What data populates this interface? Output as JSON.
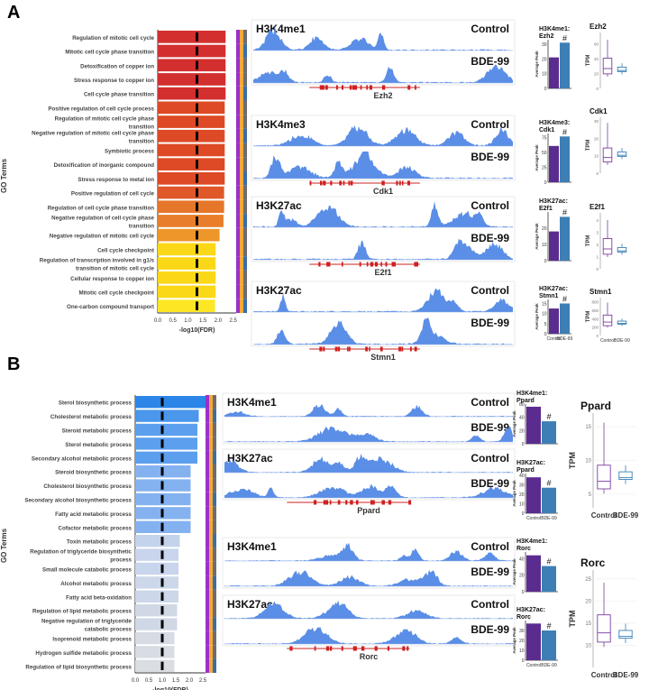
{
  "panelA": {
    "letter": "A",
    "go_axis_title": "GO Terms",
    "xlabel": "-log10(FDR)",
    "xticks": [
      "0.0",
      "0.5",
      "1.0",
      "1.5",
      "2.0",
      "2.5"
    ],
    "terms": [
      {
        "label": "Regulation of mitotic cell cycle",
        "value": 2.25,
        "color": "#d32f2f"
      },
      {
        "label": "Mitotic cell cycle phase transition",
        "value": 2.25,
        "color": "#d32f2f"
      },
      {
        "label": "Detoxification of copper ion",
        "value": 2.25,
        "color": "#d32f2f"
      },
      {
        "label": "Stress response to copper ion",
        "value": 2.25,
        "color": "#d32f2f"
      },
      {
        "label": "Cell cycle phase transition",
        "value": 2.25,
        "color": "#d32f2f"
      },
      {
        "label": "Positive regulation of cell cycle process",
        "value": 2.22,
        "color": "#dd4a25"
      },
      {
        "label": "Regulation of mitotic cell cycle phase transition",
        "value": 2.22,
        "color": "#dd4a25"
      },
      {
        "label": "Negative regulation of mitotic cell cycle phase transition",
        "value": 2.22,
        "color": "#dd4a25"
      },
      {
        "label": "Symbiotic process",
        "value": 2.22,
        "color": "#dd4a25"
      },
      {
        "label": "Detoxification of inorganic compound",
        "value": 2.22,
        "color": "#dd4a25"
      },
      {
        "label": "Stress response to metal ion",
        "value": 2.22,
        "color": "#dd4a25"
      },
      {
        "label": "Positive regulation of cell cycle",
        "value": 2.2,
        "color": "#e0582a"
      },
      {
        "label": "Regulation of cell cycle phase transition",
        "value": 2.2,
        "color": "#e6762a"
      },
      {
        "label": "Negative regulation of cell cycle phase transition",
        "value": 2.18,
        "color": "#e87e2c"
      },
      {
        "label": "Negative regulation of mitotic cell cycle",
        "value": 2.05,
        "color": "#ee962a"
      },
      {
        "label": "Cell cycle checkpoint",
        "value": 1.92,
        "color": "#fbd817"
      },
      {
        "label": "Regulation of transcription involved in g1/s transition of mitotic cell cycle",
        "value": 1.92,
        "color": "#fbd817"
      },
      {
        "label": "Cellular response to copper ion",
        "value": 1.92,
        "color": "#fbd817"
      },
      {
        "label": "Mitotic cell cycle checkpoint",
        "value": 1.92,
        "color": "#fbd817"
      },
      {
        "label": "One-carbon compound transport",
        "value": 1.9,
        "color": "#fde725"
      }
    ],
    "threshold": 1.3,
    "tracks": [
      {
        "mark": "H3K4me1",
        "gene": "Ezh2",
        "samples": [
          "Control",
          "BDE-99"
        ]
      },
      {
        "mark": "H3K4me3",
        "gene": "Cdk1",
        "samples": [
          "Control",
          "BDE-99"
        ]
      },
      {
        "mark": "H3K27ac",
        "gene": "E2f1",
        "samples": [
          "Control",
          "BDE-99"
        ]
      },
      {
        "mark": "H3K27ac",
        "gene": "Stmn1",
        "samples": [
          "Control",
          "BDE-99"
        ]
      }
    ],
    "peaks": [
      {
        "title": "H3K4me1: Ezh2",
        "ylabel": "Average Peak",
        "yticks": [
          "0",
          "10",
          "20",
          "30"
        ],
        "ymax": 33,
        "control": 21,
        "bde": 31,
        "marker": "#"
      },
      {
        "title": "H3K4me3: Cdk1",
        "ylabel": "Average Peak",
        "yticks": [
          "0",
          "25",
          "50",
          "75"
        ],
        "ymax": 82,
        "control": 61,
        "bde": 77,
        "marker": "#"
      },
      {
        "title": "H3K27ac: E2f1",
        "ylabel": "Average Peak",
        "yticks": [
          "0",
          "10",
          "20"
        ],
        "ymax": 30,
        "control": 18,
        "bde": 27,
        "marker": "#"
      },
      {
        "title": "H3K27ac: Stmn1",
        "ylabel": "Average Peak",
        "yticks": [
          "0",
          "5",
          "10",
          "15"
        ],
        "ymax": 17,
        "control": 12.5,
        "bde": 15,
        "marker": "#"
      }
    ],
    "tpm": [
      {
        "title": "Ezh2",
        "ylabel": "TPM",
        "yticks": [
          "0",
          "20",
          "40",
          "60"
        ],
        "ymax": 75
      },
      {
        "title": "Cdk1",
        "ylabel": "TPM",
        "yticks": [
          "0",
          "10",
          "20",
          "30"
        ],
        "ymax": 32
      },
      {
        "title": "E2f1",
        "ylabel": "TPM",
        "yticks": [
          "0",
          "1",
          "2",
          "3",
          "4"
        ],
        "ymax": 4.6
      },
      {
        "title": "Stmn1",
        "ylabel": "TPM",
        "yticks": [
          "0",
          "200",
          "400",
          "600",
          "800"
        ],
        "ymax": 900
      }
    ],
    "group_labels": [
      "Control",
      "BDE-99"
    ]
  },
  "panelB": {
    "letter": "B",
    "go_axis_title": "GO Terms",
    "xlabel": "-log10(FDR)",
    "xticks": [
      "0.0",
      "0.5",
      "1.0",
      "1.5",
      "2.0",
      "2.5"
    ],
    "terms": [
      {
        "label": "Sterol biosynthetic process",
        "value": 2.6,
        "color": "#2b86e8"
      },
      {
        "label": "Cholesterol metabolic process",
        "value": 2.35,
        "color": "#4a97ec"
      },
      {
        "label": "Steroid metabolic process",
        "value": 2.3,
        "color": "#5c9fee"
      },
      {
        "label": "Sterol metabolic process",
        "value": 2.3,
        "color": "#5c9fee"
      },
      {
        "label": "Secondary alcohol metabolic process",
        "value": 2.3,
        "color": "#5c9fee"
      },
      {
        "label": "Steroid biosynthetic process",
        "value": 2.05,
        "color": "#84b2f0"
      },
      {
        "label": "Cholesterol biosynthetic process",
        "value": 2.05,
        "color": "#84b2f0"
      },
      {
        "label": "Secondary alcohol biosynthetic process",
        "value": 2.05,
        "color": "#84b2f0"
      },
      {
        "label": "Fatty acid metabolic process",
        "value": 2.05,
        "color": "#84b2f0"
      },
      {
        "label": "Cofactor metabolic process",
        "value": 2.05,
        "color": "#84b2f0"
      },
      {
        "label": "Toxin metabolic process",
        "value": 1.65,
        "color": "#c4d3ec"
      },
      {
        "label": "Regulation of triglyceride biosynthetic process",
        "value": 1.6,
        "color": "#c8d5ec"
      },
      {
        "label": "Small molecule catabolic process",
        "value": 1.6,
        "color": "#c8d5ec"
      },
      {
        "label": "Alcohol metabolic process",
        "value": 1.6,
        "color": "#ccd7ea"
      },
      {
        "label": "Fatty acid beta-oxidation",
        "value": 1.6,
        "color": "#ccd7ea"
      },
      {
        "label": "Regulation of lipid metabolic process",
        "value": 1.55,
        "color": "#d0d8e6"
      },
      {
        "label": "Negative regulation of triglyceride catabolic process",
        "value": 1.55,
        "color": "#d0d8e6"
      },
      {
        "label": "Isoprenoid metabolic process",
        "value": 1.45,
        "color": "#d6dbe4"
      },
      {
        "label": "Hydrogen sulfide metabolic process",
        "value": 1.45,
        "color": "#d8dce3"
      },
      {
        "label": "Regulation of lipid biosynthetic process",
        "value": 1.45,
        "color": "#dadde2"
      }
    ],
    "threshold": 1.0,
    "tracks": [
      {
        "mark": "H3K4me1",
        "gene": "",
        "samples": [
          "Control",
          "BDE-99"
        ]
      },
      {
        "mark": "H3K27ac",
        "gene": "Ppard",
        "samples": [
          "Control",
          "BDE-99"
        ]
      },
      {
        "mark": "H3K4me1",
        "gene": "",
        "samples": [
          "Control",
          "BDE-99"
        ]
      },
      {
        "mark": "H3K27ac",
        "gene": "Rorc",
        "samples": [
          "Control",
          "BDE-99"
        ]
      }
    ],
    "peaks": [
      {
        "title": "H3K4me1: Ppard",
        "ylabel": "Average Peak",
        "yticks": [
          "0",
          "20",
          "40",
          "60"
        ],
        "ymax": 60,
        "control": 56,
        "bde": 34,
        "marker": "#"
      },
      {
        "title": "H3K27ac: Ppard",
        "ylabel": "Average Peak",
        "yticks": [
          "0",
          "10",
          "20",
          "30",
          "40"
        ],
        "ymax": 42,
        "control": 38,
        "bde": 27,
        "marker": "#"
      },
      {
        "title": "H3K4me1: Rorc",
        "ylabel": "Average Peak",
        "yticks": [
          "0",
          "20",
          "40"
        ],
        "ymax": 48,
        "control": 44,
        "bde": 31,
        "marker": "#"
      },
      {
        "title": "H3K27ac: Rorc",
        "ylabel": "Average Peak",
        "yticks": [
          "0",
          "10",
          "20",
          "30"
        ],
        "ymax": 40,
        "control": 37,
        "bde": 30,
        "marker": "#"
      }
    ],
    "tpm": [
      {
        "title": "Ppard",
        "ylabel": "TPM",
        "yticks": [
          "5",
          "10",
          "15"
        ],
        "ymin": 3,
        "ymax": 17
      },
      {
        "title": "Rorc",
        "ylabel": "TPM",
        "yticks": [
          "10",
          "15",
          "20",
          "25"
        ],
        "ymin": 5,
        "ymax": 27
      }
    ],
    "group_labels": [
      "Control",
      "BDE-99"
    ]
  },
  "colors": {
    "control": "#5b2c8f",
    "bde": "#3d7fb5",
    "track": "#5b8ee6",
    "tpm_control": "#7a3ea0",
    "tpm_bde": "#3a80b4"
  }
}
